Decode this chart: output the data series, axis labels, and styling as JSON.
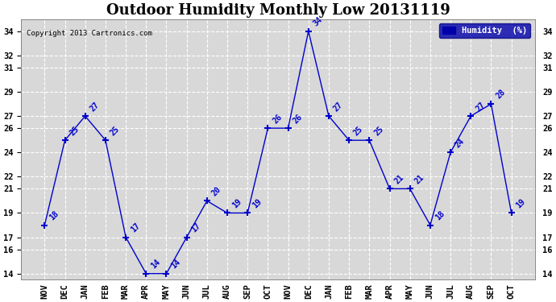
{
  "title": "Outdoor Humidity Monthly Low 20131119",
  "copyright": "Copyright 2013 Cartronics.com",
  "legend_label": "Humidity  (%)",
  "months": [
    "NOV",
    "DEC",
    "JAN",
    "FEB",
    "MAR",
    "APR",
    "MAY",
    "JUN",
    "JUL",
    "AUG",
    "SEP",
    "OCT",
    "NOV",
    "DEC",
    "JAN",
    "FEB",
    "MAR",
    "APR",
    "MAY",
    "JUN",
    "JUL",
    "AUG",
    "SEP",
    "OCT"
  ],
  "values": [
    18,
    25,
    27,
    25,
    17,
    14,
    14,
    17,
    20,
    19,
    19,
    26,
    26,
    34,
    27,
    25,
    25,
    21,
    21,
    18,
    24,
    27,
    28,
    19
  ],
  "line_color": "#0000cc",
  "marker": "+",
  "background_color": "#ffffff",
  "plot_bg_color": "#d8d8d8",
  "grid_color": "#ffffff",
  "ylim": [
    13.5,
    35
  ],
  "yticks": [
    14,
    16,
    17,
    19,
    21,
    22,
    24,
    26,
    27,
    29,
    31,
    32,
    34
  ],
  "title_fontsize": 13,
  "label_fontsize": 7.5,
  "annotation_fontsize": 7,
  "legend_bg": "#0000aa",
  "legend_text_color": "#ffffff"
}
